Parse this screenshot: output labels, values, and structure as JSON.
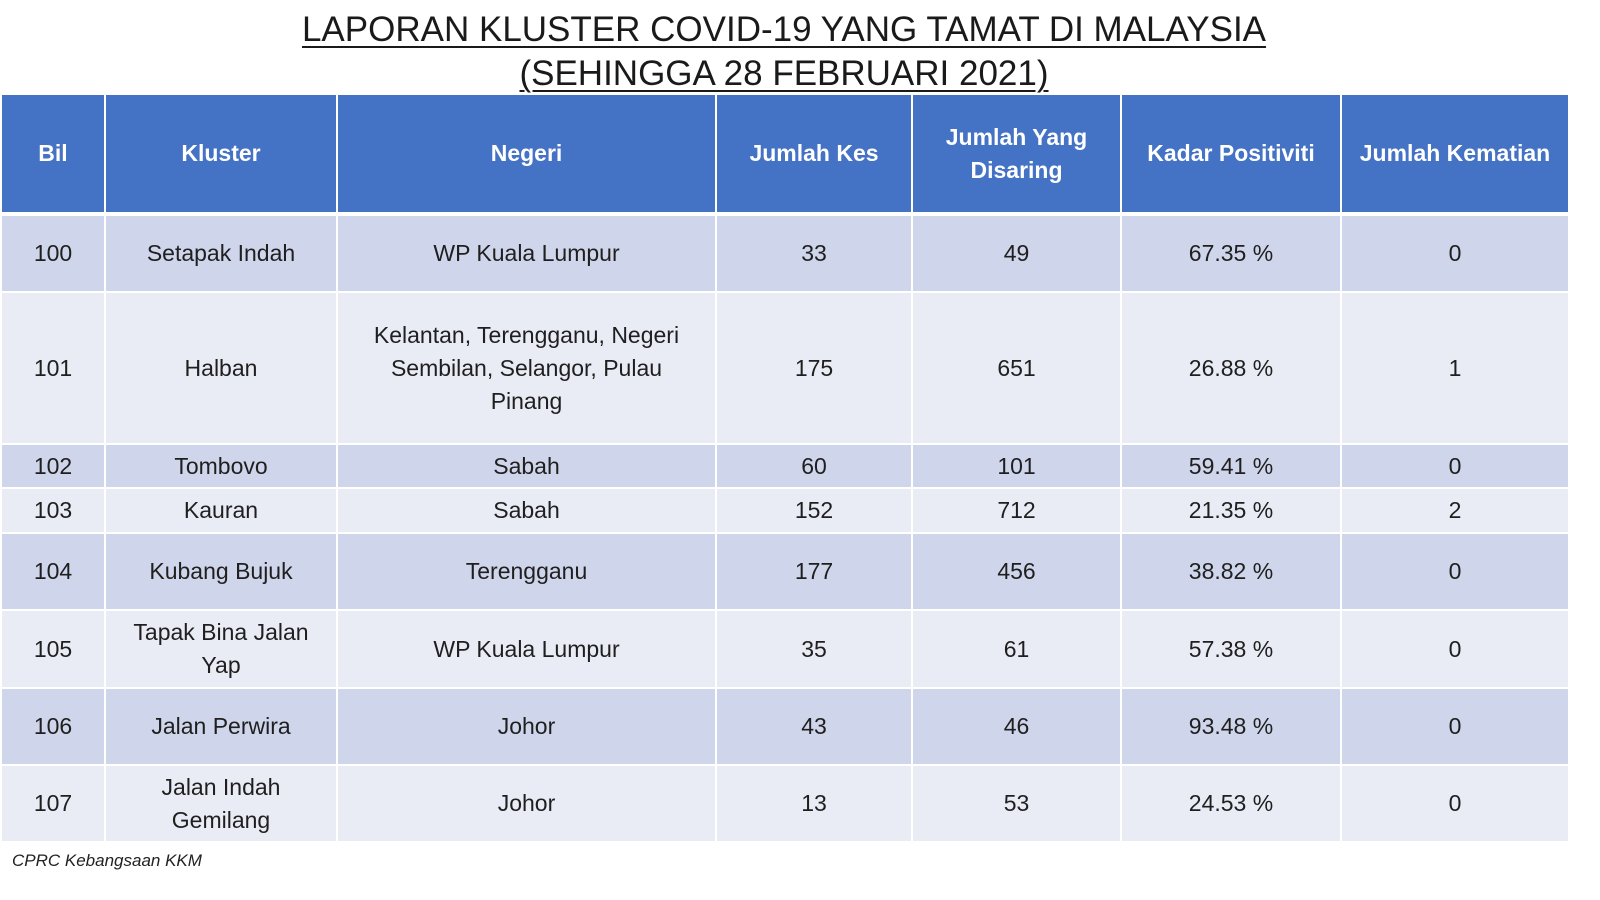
{
  "title": {
    "line1": "LAPORAN KLUSTER COVID-19 YANG TAMAT DI MALAYSIA",
    "line2": "(SEHINGGA  28 FEBRUARI 2021)"
  },
  "table": {
    "headers": {
      "bil": "Bil",
      "kluster": "Kluster",
      "negeri": "Negeri",
      "jumlah_kes": "Jumlah Kes",
      "jumlah_disaring": "Jumlah Yang Disaring",
      "kadar_positiviti": "Kadar Positiviti",
      "jumlah_kematian": "Jumlah Kematian"
    },
    "rows": [
      {
        "bil": "100",
        "kluster": "Setapak Indah",
        "negeri": "WP Kuala Lumpur",
        "jumlah_kes": "33",
        "jumlah_disaring": "49",
        "kadar_positiviti": "67.35 %",
        "jumlah_kematian": "0"
      },
      {
        "bil": "101",
        "kluster": "Halban",
        "negeri": "Kelantan, Terengganu, Negeri Sembilan, Selangor, Pulau Pinang",
        "jumlah_kes": "175",
        "jumlah_disaring": "651",
        "kadar_positiviti": "26.88 %",
        "jumlah_kematian": "1"
      },
      {
        "bil": "102",
        "kluster": "Tombovo",
        "negeri": "Sabah",
        "jumlah_kes": "60",
        "jumlah_disaring": "101",
        "kadar_positiviti": "59.41 %",
        "jumlah_kematian": "0"
      },
      {
        "bil": "103",
        "kluster": "Kauran",
        "negeri": "Sabah",
        "jumlah_kes": "152",
        "jumlah_disaring": "712",
        "kadar_positiviti": "21.35 %",
        "jumlah_kematian": "2"
      },
      {
        "bil": "104",
        "kluster": "Kubang Bujuk",
        "negeri": "Terengganu",
        "jumlah_kes": "177",
        "jumlah_disaring": "456",
        "kadar_positiviti": "38.82 %",
        "jumlah_kematian": "0"
      },
      {
        "bil": "105",
        "kluster": "Tapak Bina Jalan Yap",
        "negeri": "WP Kuala Lumpur",
        "jumlah_kes": "35",
        "jumlah_disaring": "61",
        "kadar_positiviti": "57.38 %",
        "jumlah_kematian": "0"
      },
      {
        "bil": "106",
        "kluster": "Jalan Perwira",
        "negeri": "Johor",
        "jumlah_kes": "43",
        "jumlah_disaring": "46",
        "kadar_positiviti": "93.48 %",
        "jumlah_kematian": "0"
      },
      {
        "bil": "107",
        "kluster": "Jalan Indah Gemilang",
        "negeri": "Johor",
        "jumlah_kes": "13",
        "jumlah_disaring": "53",
        "kadar_positiviti": "24.53 %",
        "jumlah_kematian": "0"
      }
    ]
  },
  "footer": {
    "source": "CPRC Kebangsaan KKM"
  },
  "colors": {
    "header_bg": "#4472c4",
    "row_odd_bg": "#cfd5ea",
    "row_even_bg": "#e9ebf5"
  }
}
